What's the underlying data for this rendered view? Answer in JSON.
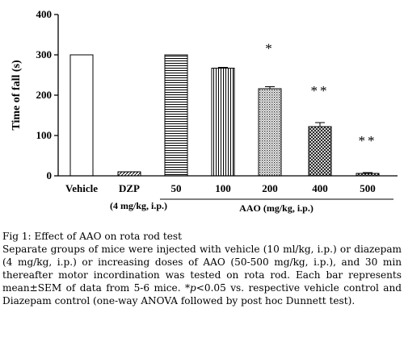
{
  "chart_data": {
    "type": "bar",
    "ylabel": "Time of fall (s)",
    "ylim": [
      0,
      400
    ],
    "yticks": [
      0,
      100,
      200,
      300,
      400
    ],
    "categories": [
      "Vehicle",
      "DZP",
      "50",
      "100",
      "200",
      "400",
      "500"
    ],
    "values": [
      300,
      10,
      300,
      267,
      216,
      122,
      6
    ],
    "errors": [
      0,
      0,
      0,
      2,
      5,
      10,
      2
    ],
    "patterns": [
      "white",
      "diagonal",
      "horizontal",
      "vertical",
      "dotted",
      "crosshatch",
      "crosshatch"
    ],
    "significance": [
      "",
      "",
      "",
      "",
      "*",
      "**",
      "**"
    ],
    "group_labels": {
      "dzp_dose": "(4 mg/kg, i.p.)",
      "aao_dose": "AAO (mg/kg, i.p.)"
    }
  },
  "caption": {
    "title": "Fig 1: Effect of AAO on rota rod test",
    "body_1": "Separate groups of mice were injected with vehicle (10 ml/kg, i.p.) or diazepam (4 mg/kg, i.p.) or increasing doses of AAO (50-500 mg/kg, i.p.), and 30 min thereafter motor incordination was tested on rota rod. Each bar represents mean±SEM of data from 5-6 mice. *",
    "body_p": "p",
    "body_2": "<0.05 vs. respective vehicle control and Diazepam control (one-way ANOVA followed by post hoc Dunnett test)."
  }
}
